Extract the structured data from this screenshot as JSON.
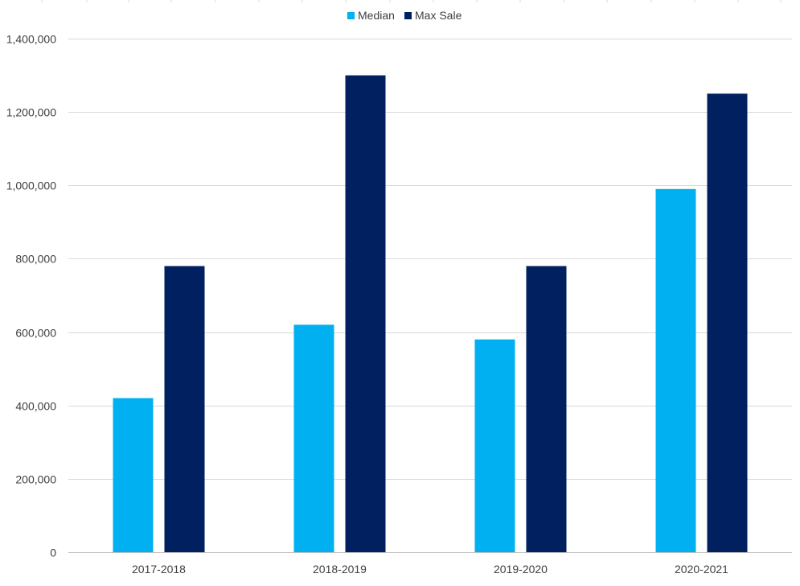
{
  "chart_data": {
    "type": "bar",
    "categories": [
      "2017-2018",
      "2018-2019",
      "2019-2020",
      "2020-2021"
    ],
    "series": [
      {
        "name": "Median",
        "color": "#00B0F0",
        "values": [
          420000,
          620000,
          580000,
          990000
        ]
      },
      {
        "name": "Max Sale",
        "color": "#002060",
        "values": [
          780000,
          1300000,
          780000,
          1250000
        ]
      }
    ],
    "ylim": [
      0,
      1400000
    ],
    "yticks": [
      0,
      200000,
      400000,
      600000,
      800000,
      1000000,
      1200000,
      1400000
    ],
    "ytick_labels": [
      "0",
      "200,000",
      "400,000",
      "600,000",
      "800,000",
      "1,000,000",
      "1,200,000",
      "1,400,000"
    ],
    "grid": true,
    "legend_position": "top-center",
    "title": "",
    "xlabel": "",
    "ylabel": ""
  }
}
